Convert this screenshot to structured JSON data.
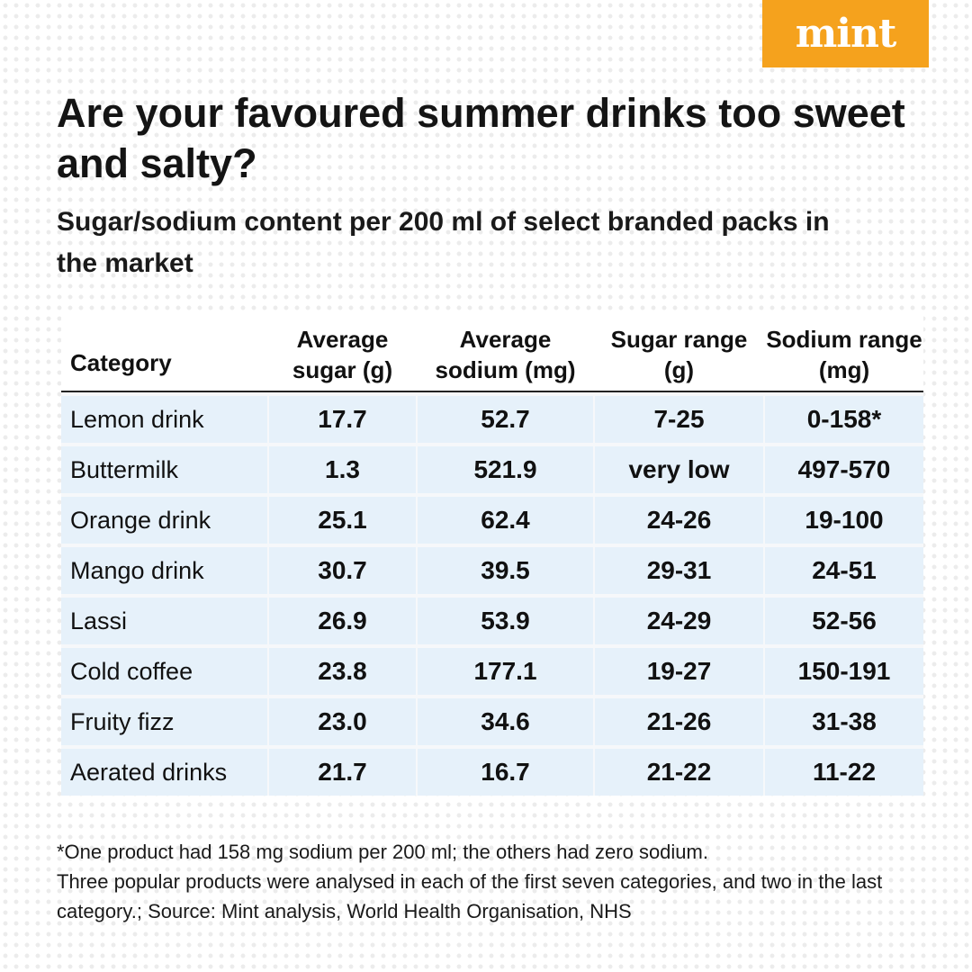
{
  "brand": "mint",
  "title": "Are your favoured summer drinks too sweet and salty?",
  "subtitle": "Sugar/sodium content per 200 ml of select branded packs in the market",
  "chart_data": {
    "type": "table",
    "columns": [
      "Category",
      "Average sugar (g)",
      "Average sodium (mg)",
      "Sugar range (g)",
      "Sodium range (mg)"
    ],
    "rows": [
      [
        "Lemon drink",
        "17.7",
        "52.7",
        "7-25",
        "0-158*"
      ],
      [
        "Buttermilk",
        "1.3",
        "521.9",
        "very low",
        "497-570"
      ],
      [
        "Orange drink",
        "25.1",
        "62.4",
        "24-26",
        "19-100"
      ],
      [
        "Mango drink",
        "30.7",
        "39.5",
        "29-31",
        "24-51"
      ],
      [
        "Lassi",
        "26.9",
        "53.9",
        "24-29",
        "52-56"
      ],
      [
        "Cold coffee",
        "23.8",
        "177.1",
        "19-27",
        "150-191"
      ],
      [
        "Fruity fizz",
        "23.0",
        "34.6",
        "21-26",
        "31-38"
      ],
      [
        "Aerated drinks",
        "21.7",
        "16.7",
        "21-22",
        "11-22"
      ]
    ]
  },
  "footnote": {
    "line1": "*One product had 158 mg sodium per 200 ml; the others had zero sodium.",
    "line2": "Three popular products were analysed in each of the first seven categories, and two in the last category.; Source: Mint analysis, World Health Organisation, NHS"
  },
  "colors": {
    "brand_orange": "#f5a21d",
    "cell_blue": "#e6f1fa",
    "text": "#111111"
  }
}
